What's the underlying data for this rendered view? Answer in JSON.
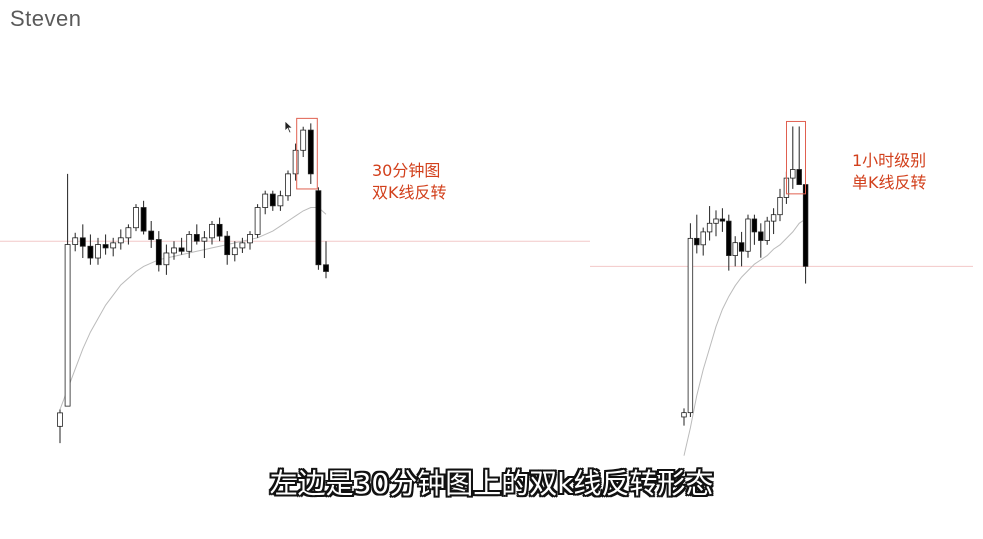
{
  "watermark": "Steven",
  "caption": "左边是30分钟图上的双k线反转形态",
  "colors": {
    "annotation": "#d2401c",
    "highlight_box": "#e06050",
    "reference_line": "#f2c8c8",
    "ma_line": "#bbbbbb",
    "up_candle": "#ffffff",
    "down_candle": "#000000"
  },
  "chart_data": [
    {
      "type": "candlestick",
      "annotation": [
        "30分钟图",
        "双K线反转"
      ],
      "highlight": "last two candles before the drop (double-candle reversal)",
      "reference_level": 300,
      "grid": false,
      "candles": [
        {
          "o": 190,
          "h": 200,
          "l": 180,
          "c": 198
        },
        {
          "o": 202,
          "h": 340,
          "l": 202,
          "c": 298
        },
        {
          "o": 298,
          "h": 305,
          "l": 294,
          "c": 302
        },
        {
          "o": 302,
          "h": 310,
          "l": 290,
          "c": 297
        },
        {
          "o": 297,
          "h": 304,
          "l": 286,
          "c": 290
        },
        {
          "o": 290,
          "h": 302,
          "l": 286,
          "c": 298
        },
        {
          "o": 298,
          "h": 304,
          "l": 292,
          "c": 296
        },
        {
          "o": 296,
          "h": 302,
          "l": 291,
          "c": 299
        },
        {
          "o": 299,
          "h": 307,
          "l": 295,
          "c": 302
        },
        {
          "o": 302,
          "h": 310,
          "l": 298,
          "c": 308
        },
        {
          "o": 308,
          "h": 322,
          "l": 306,
          "c": 320
        },
        {
          "o": 320,
          "h": 324,
          "l": 304,
          "c": 306
        },
        {
          "o": 306,
          "h": 312,
          "l": 296,
          "c": 301
        },
        {
          "o": 301,
          "h": 306,
          "l": 282,
          "c": 286
        },
        {
          "o": 286,
          "h": 298,
          "l": 280,
          "c": 293
        },
        {
          "o": 293,
          "h": 300,
          "l": 289,
          "c": 296
        },
        {
          "o": 296,
          "h": 302,
          "l": 292,
          "c": 294
        },
        {
          "o": 294,
          "h": 306,
          "l": 290,
          "c": 304
        },
        {
          "o": 304,
          "h": 310,
          "l": 298,
          "c": 300
        },
        {
          "o": 300,
          "h": 306,
          "l": 290,
          "c": 302
        },
        {
          "o": 302,
          "h": 312,
          "l": 298,
          "c": 310
        },
        {
          "o": 310,
          "h": 314,
          "l": 300,
          "c": 303
        },
        {
          "o": 303,
          "h": 306,
          "l": 286,
          "c": 292
        },
        {
          "o": 292,
          "h": 300,
          "l": 288,
          "c": 296
        },
        {
          "o": 296,
          "h": 302,
          "l": 293,
          "c": 299
        },
        {
          "o": 299,
          "h": 306,
          "l": 295,
          "c": 304
        },
        {
          "o": 304,
          "h": 322,
          "l": 302,
          "c": 320
        },
        {
          "o": 320,
          "h": 330,
          "l": 316,
          "c": 328
        },
        {
          "o": 328,
          "h": 330,
          "l": 318,
          "c": 321
        },
        {
          "o": 321,
          "h": 330,
          "l": 318,
          "c": 327
        },
        {
          "o": 327,
          "h": 342,
          "l": 324,
          "c": 340
        },
        {
          "o": 340,
          "h": 358,
          "l": 336,
          "c": 354
        },
        {
          "o": 354,
          "h": 368,
          "l": 350,
          "c": 366
        },
        {
          "o": 366,
          "h": 370,
          "l": 334,
          "c": 340
        },
        {
          "o": 330,
          "h": 332,
          "l": 283,
          "c": 286
        },
        {
          "o": 286,
          "h": 300,
          "l": 278,
          "c": 282
        }
      ],
      "ma": [
        200,
        212,
        224,
        236,
        246,
        254,
        262,
        268,
        274,
        278,
        282,
        285,
        287,
        289,
        290,
        291,
        292,
        293,
        294,
        295,
        296,
        297,
        298,
        299,
        300,
        301,
        302,
        304,
        306,
        309,
        312,
        315,
        318,
        320,
        320,
        316
      ]
    },
    {
      "type": "candlestick",
      "annotation": [
        "1小时级别",
        "单K线反转"
      ],
      "highlight": "top candles of the single-candle reversal",
      "reference_level": 300,
      "grid": false,
      "candles": [
        {
          "o": 230,
          "h": 234,
          "l": 226,
          "c": 232
        },
        {
          "o": 232,
          "h": 320,
          "l": 230,
          "c": 313
        },
        {
          "o": 313,
          "h": 324,
          "l": 306,
          "c": 310
        },
        {
          "o": 310,
          "h": 318,
          "l": 305,
          "c": 316
        },
        {
          "o": 316,
          "h": 328,
          "l": 312,
          "c": 320
        },
        {
          "o": 320,
          "h": 326,
          "l": 314,
          "c": 322
        },
        {
          "o": 322,
          "h": 327,
          "l": 316,
          "c": 321
        },
        {
          "o": 321,
          "h": 324,
          "l": 298,
          "c": 305
        },
        {
          "o": 305,
          "h": 314,
          "l": 300,
          "c": 311
        },
        {
          "o": 311,
          "h": 316,
          "l": 300,
          "c": 307
        },
        {
          "o": 307,
          "h": 324,
          "l": 304,
          "c": 322
        },
        {
          "o": 322,
          "h": 324,
          "l": 310,
          "c": 316
        },
        {
          "o": 316,
          "h": 320,
          "l": 304,
          "c": 312
        },
        {
          "o": 312,
          "h": 323,
          "l": 310,
          "c": 321
        },
        {
          "o": 321,
          "h": 327,
          "l": 315,
          "c": 324
        },
        {
          "o": 324,
          "h": 336,
          "l": 321,
          "c": 332
        },
        {
          "o": 332,
          "h": 344,
          "l": 329,
          "c": 341
        },
        {
          "o": 341,
          "h": 365,
          "l": 336,
          "c": 345
        },
        {
          "o": 345,
          "h": 365,
          "l": 338,
          "c": 338
        },
        {
          "o": 338,
          "h": 338,
          "l": 292,
          "c": 300
        }
      ],
      "ma": [
        212,
        225,
        240,
        252,
        262,
        272,
        280,
        286,
        291,
        295,
        298,
        301,
        303,
        305,
        308,
        310,
        313,
        316,
        320,
        322
      ]
    }
  ]
}
